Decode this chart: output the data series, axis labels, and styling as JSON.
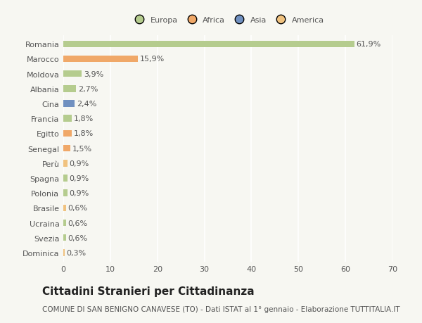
{
  "categories": [
    "Dominica",
    "Svezia",
    "Ucraina",
    "Brasile",
    "Polonia",
    "Spagna",
    "Perù",
    "Senegal",
    "Egitto",
    "Francia",
    "Cina",
    "Albania",
    "Moldova",
    "Marocco",
    "Romania"
  ],
  "values": [
    0.3,
    0.6,
    0.6,
    0.6,
    0.9,
    0.9,
    0.9,
    1.5,
    1.8,
    1.8,
    2.4,
    2.7,
    3.9,
    15.9,
    61.9
  ],
  "labels": [
    "0,3%",
    "0,6%",
    "0,6%",
    "0,6%",
    "0,9%",
    "0,9%",
    "0,9%",
    "1,5%",
    "1,8%",
    "1,8%",
    "2,4%",
    "2,7%",
    "3,9%",
    "15,9%",
    "61,9%"
  ],
  "colors": [
    "#f0c27f",
    "#b5cc8e",
    "#b5cc8e",
    "#f0c27f",
    "#b5cc8e",
    "#b5cc8e",
    "#f0c27f",
    "#f0a868",
    "#f0a868",
    "#b5cc8e",
    "#7090c0",
    "#b5cc8e",
    "#b5cc8e",
    "#f0a868",
    "#b5cc8e"
  ],
  "legend_labels": [
    "Europa",
    "Africa",
    "Asia",
    "America"
  ],
  "legend_colors": [
    "#b5cc8e",
    "#f0a868",
    "#7090c0",
    "#f0c27f"
  ],
  "title": "Cittadini Stranieri per Cittadinanza",
  "subtitle": "COMUNE DI SAN BENIGNO CANAVESE (TO) - Dati ISTAT al 1° gennaio - Elaborazione TUTTITALIA.IT",
  "xlim": [
    0,
    70
  ],
  "xticks": [
    0,
    10,
    20,
    30,
    40,
    50,
    60,
    70
  ],
  "bg_color": "#f7f7f2",
  "grid_color": "#ffffff",
  "text_color": "#555555",
  "label_fontsize": 8.0,
  "tick_fontsize": 8.0,
  "title_fontsize": 11,
  "subtitle_fontsize": 7.5,
  "bar_height": 0.45
}
